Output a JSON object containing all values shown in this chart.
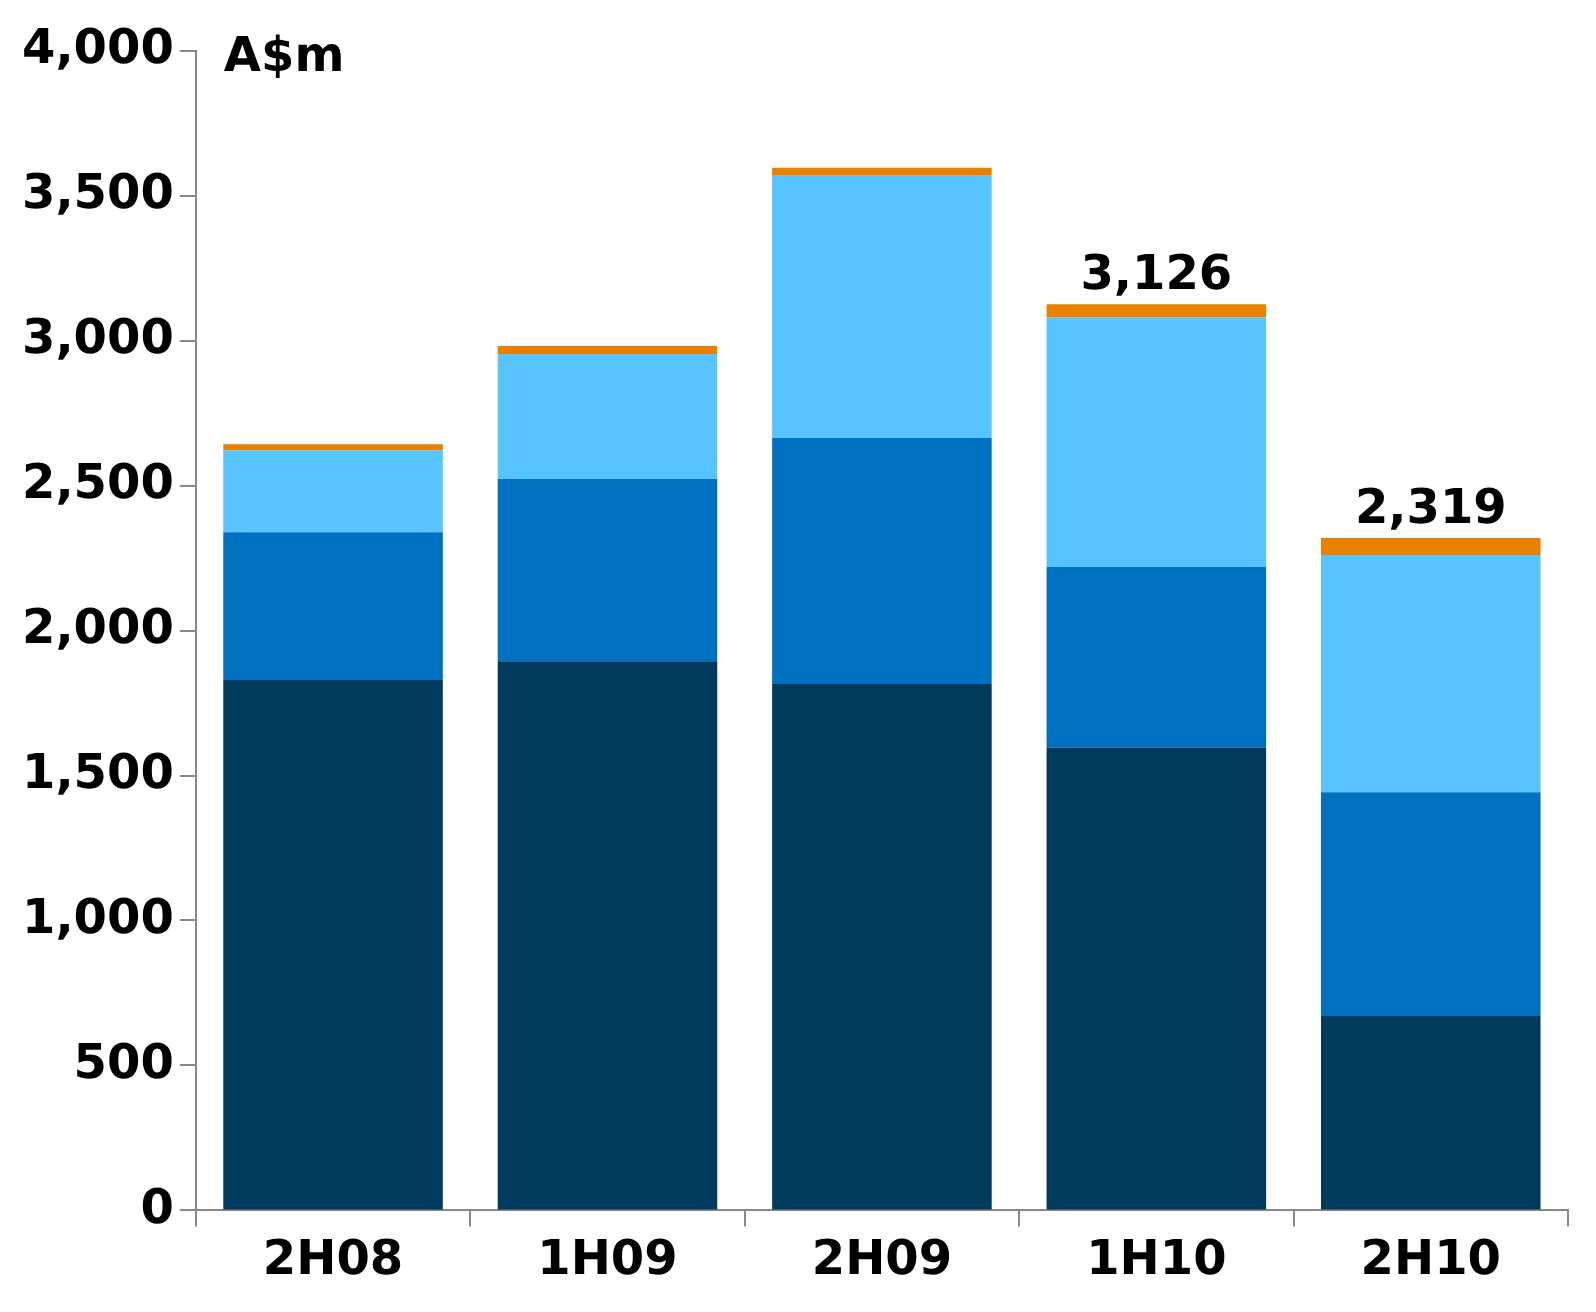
{
  "chart_data": {
    "type": "bar",
    "stacked": true,
    "ylabel": "A$m",
    "categories": [
      "2H08",
      "1H09",
      "2H09",
      "1H10",
      "2H10"
    ],
    "series": [
      {
        "color": "#003a5c",
        "values": [
          1830,
          1894,
          1816,
          1597,
          671
        ]
      },
      {
        "color": "#0070c0",
        "values": [
          509,
          629,
          848,
          622,
          771
        ]
      },
      {
        "color": "#57c4ff",
        "values": [
          283,
          431,
          905,
          861,
          819
        ]
      },
      {
        "color": "#e98000",
        "values": [
          21,
          28,
          28,
          46,
          58
        ]
      }
    ],
    "totals": [
      null,
      null,
      null,
      "3,126",
      "2,319"
    ],
    "ylim": [
      0,
      4000
    ],
    "yticks": [
      0,
      {
        "value": 500,
        "label": "500"
      },
      {
        "value": 1000,
        "label": "1,000"
      },
      {
        "value": 1500,
        "label": "1,500"
      },
      {
        "value": 2000,
        "label": "2,000"
      },
      {
        "value": 2500,
        "label": "2,500"
      },
      {
        "value": 3000,
        "label": "3,000"
      },
      {
        "value": 3500,
        "label": "3,500"
      },
      {
        "value": 4000,
        "label": "4,000"
      }
    ],
    "grid": false,
    "legend": false
  }
}
